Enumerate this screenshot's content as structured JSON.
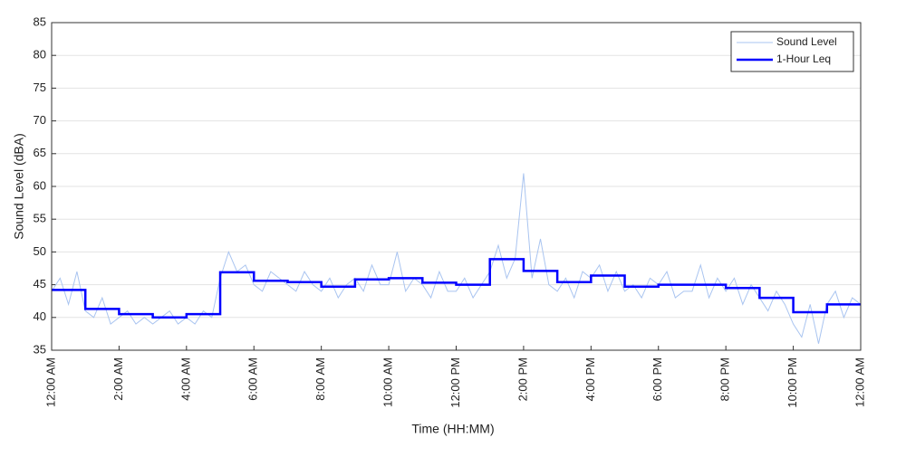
{
  "chart_data": {
    "type": "line",
    "xlabel": "Time (HH:MM)",
    "ylabel": "Sound Level (dBA)",
    "xlim": [
      0,
      24
    ],
    "ylim": [
      35,
      85
    ],
    "xticks": [
      {
        "value": 0,
        "label": "12:00 AM"
      },
      {
        "value": 2,
        "label": "2:00 AM"
      },
      {
        "value": 4,
        "label": "4:00 AM"
      },
      {
        "value": 6,
        "label": "6:00 AM"
      },
      {
        "value": 8,
        "label": "8:00 AM"
      },
      {
        "value": 10,
        "label": "10:00 AM"
      },
      {
        "value": 12,
        "label": "12:00 PM"
      },
      {
        "value": 14,
        "label": "2:00 PM"
      },
      {
        "value": 16,
        "label": "4:00 PM"
      },
      {
        "value": 18,
        "label": "6:00 PM"
      },
      {
        "value": 20,
        "label": "8:00 PM"
      },
      {
        "value": 22,
        "label": "10:00 PM"
      },
      {
        "value": 24,
        "label": "12:00 AM"
      }
    ],
    "yticks": [
      35,
      40,
      45,
      50,
      55,
      60,
      65,
      70,
      75,
      80,
      85
    ],
    "grid": true,
    "legend": "northeast",
    "series": [
      {
        "name": "Sound Level",
        "color": "#a9c4f0",
        "width": 1,
        "drawstyle": "default",
        "x": [
          0,
          0.25,
          0.5,
          0.75,
          1,
          1.25,
          1.5,
          1.75,
          2,
          2.25,
          2.5,
          2.75,
          3,
          3.25,
          3.5,
          3.75,
          4,
          4.25,
          4.5,
          4.75,
          5,
          5.25,
          5.5,
          5.75,
          6,
          6.25,
          6.5,
          6.75,
          7,
          7.25,
          7.5,
          7.75,
          8,
          8.25,
          8.5,
          8.75,
          9,
          9.25,
          9.5,
          9.75,
          10,
          10.25,
          10.5,
          10.75,
          11,
          11.25,
          11.5,
          11.75,
          12,
          12.25,
          12.5,
          12.75,
          13,
          13.25,
          13.5,
          13.75,
          14,
          14.25,
          14.5,
          14.75,
          15,
          15.25,
          15.5,
          15.75,
          16,
          16.25,
          16.5,
          16.75,
          17,
          17.25,
          17.5,
          17.75,
          18,
          18.25,
          18.5,
          18.75,
          19,
          19.25,
          19.5,
          19.75,
          20,
          20.25,
          20.5,
          20.75,
          21,
          21.25,
          21.5,
          21.75,
          22,
          22.25,
          22.5,
          22.75,
          23,
          23.25,
          23.5,
          23.75,
          24
        ],
        "values": [
          44,
          46,
          42,
          47,
          41,
          40,
          43,
          39,
          40,
          41,
          39,
          40,
          39,
          40,
          41,
          39,
          40,
          39,
          41,
          40,
          46,
          50,
          47,
          48,
          45,
          44,
          47,
          46,
          45,
          44,
          47,
          45,
          44,
          46,
          43,
          45,
          46,
          44,
          48,
          45,
          45,
          50,
          44,
          46,
          45,
          43,
          47,
          44,
          44,
          46,
          43,
          45,
          47,
          51,
          46,
          49,
          62,
          46,
          52,
          45,
          44,
          46,
          43,
          47,
          46,
          48,
          44,
          47,
          44,
          45,
          43,
          46,
          45,
          47,
          43,
          44,
          44,
          48,
          43,
          46,
          44,
          46,
          42,
          45,
          43,
          41,
          44,
          42,
          39,
          37,
          42,
          36,
          42,
          44,
          40,
          43,
          42
        ]
      },
      {
        "name": "1-Hour Leq",
        "color": "#0000ff",
        "width": 2.5,
        "drawstyle": "steps-post",
        "x": [
          0,
          1,
          2,
          3,
          4,
          5,
          6,
          7,
          8,
          9,
          10,
          11,
          12,
          13,
          14,
          15,
          16,
          17,
          18,
          19,
          20,
          21,
          22,
          23
        ],
        "values": [
          44.2,
          41.3,
          40.5,
          40.0,
          40.5,
          46.9,
          45.6,
          45.4,
          44.7,
          45.8,
          46.0,
          45.3,
          45.0,
          48.9,
          47.1,
          45.4,
          46.4,
          44.7,
          45.0,
          45.0,
          44.5,
          43.0,
          40.8,
          42.0
        ]
      }
    ]
  }
}
